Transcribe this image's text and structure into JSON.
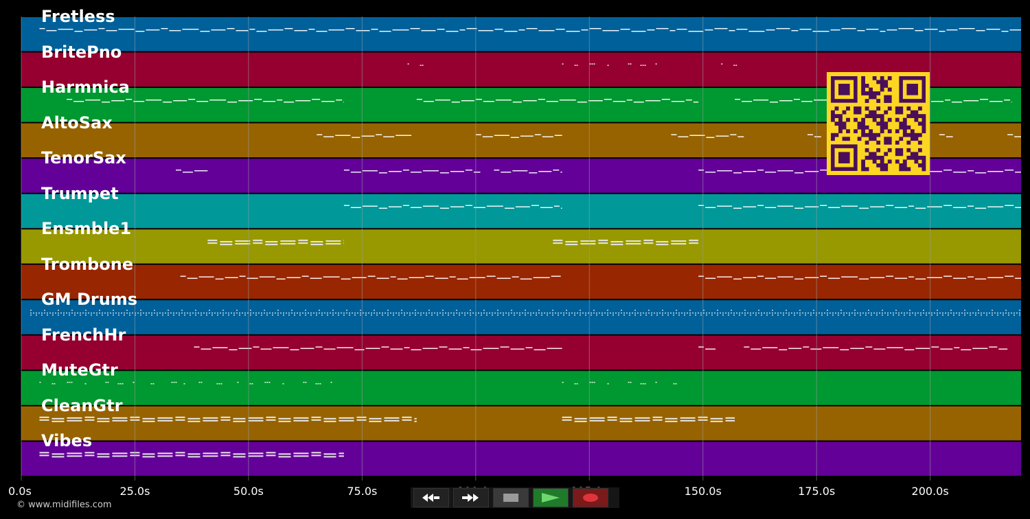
{
  "duration_seconds": 220,
  "timeline": {
    "ticks": [
      "0.0s",
      "25.0s",
      "50.0s",
      "75.0s",
      "100.0s",
      "125.0s",
      "150.0s",
      "175.0s",
      "200.0s"
    ]
  },
  "tracks": [
    {
      "name": "Fretless",
      "color": "#00609A",
      "kind": "line",
      "segments": [
        [
          4,
          220
        ]
      ]
    },
    {
      "name": "BritePno",
      "color": "#950030",
      "kind": "dots",
      "segments": [
        [
          85,
          89
        ],
        [
          119,
          141
        ],
        [
          154,
          158
        ]
      ]
    },
    {
      "name": "Harmnica",
      "color": "#009830",
      "kind": "line",
      "segments": [
        [
          10,
          71
        ],
        [
          87,
          149
        ],
        [
          157,
          218
        ]
      ]
    },
    {
      "name": "AltoSax",
      "color": "#976300",
      "kind": "line",
      "segments": [
        [
          65,
          86
        ],
        [
          100,
          119
        ],
        [
          143,
          159
        ],
        [
          173,
          176
        ],
        [
          187,
          190
        ],
        [
          202,
          205
        ],
        [
          217,
          220
        ]
      ]
    },
    {
      "name": "TenorSax",
      "color": "#630098",
      "kind": "line",
      "segments": [
        [
          34,
          41
        ],
        [
          71,
          101
        ],
        [
          104,
          119
        ],
        [
          149,
          220
        ]
      ]
    },
    {
      "name": "Trumpet",
      "color": "#009898",
      "kind": "line",
      "segments": [
        [
          71,
          119
        ],
        [
          149,
          220
        ]
      ]
    },
    {
      "name": "Ensmble1",
      "color": "#989800",
      "kind": "chord",
      "segments": [
        [
          41,
          71
        ],
        [
          117,
          149
        ]
      ]
    },
    {
      "name": "Trombone",
      "color": "#982600",
      "kind": "line",
      "segments": [
        [
          35,
          119
        ],
        [
          149,
          220
        ]
      ]
    },
    {
      "name": "GM Drums",
      "color": "#00609A",
      "kind": "drum",
      "segments": [
        [
          2,
          220
        ]
      ]
    },
    {
      "name": "FrenchHr",
      "color": "#950030",
      "kind": "line",
      "segments": [
        [
          38,
          119
        ],
        [
          149,
          153
        ],
        [
          159,
          217
        ]
      ]
    },
    {
      "name": "MuteGtr",
      "color": "#009830",
      "kind": "dots",
      "segments": [
        [
          4,
          70
        ],
        [
          119,
          148
        ]
      ]
    },
    {
      "name": "CleanGtr",
      "color": "#976300",
      "kind": "chord",
      "segments": [
        [
          4,
          87
        ],
        [
          119,
          157
        ]
      ]
    },
    {
      "name": "Vibes",
      "color": "#630098",
      "kind": "chord",
      "segments": [
        [
          4,
          71
        ]
      ]
    }
  ],
  "transport": {
    "rewind_icon": "rewind-icon",
    "fast_forward_icon": "fast-forward-icon",
    "stop_icon": "stop-icon",
    "play_icon": "play-icon",
    "record_icon": "record-icon",
    "colors": {
      "play": "#1F7A2A",
      "record": "#7A1A1A",
      "stop": "#3A3A3A"
    }
  },
  "copyright": "© www.midifiles.com",
  "colors": {
    "background": "#000000",
    "grid": "#9AA0A6",
    "qr": "#FCD622",
    "qr_dark": "#4A0F5A"
  }
}
